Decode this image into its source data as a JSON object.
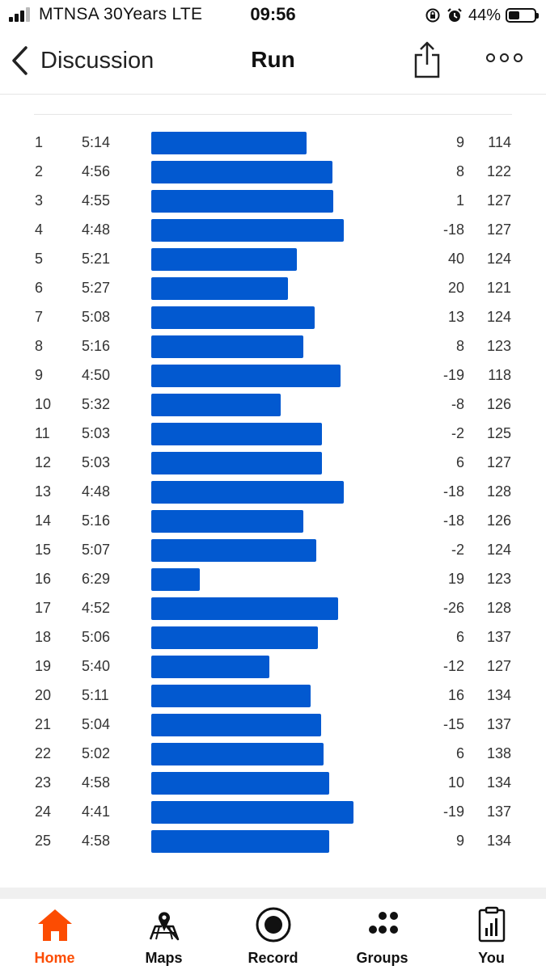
{
  "status": {
    "carrier": "MTNSA 30Years  LTE",
    "time": "09:56",
    "battery": "44%",
    "battery_level": 0.44
  },
  "nav": {
    "back_label": "Discussion",
    "title": "Run",
    "back_icon": "chevron-left-icon",
    "share_icon": "share-icon",
    "more_icon": "more-icon"
  },
  "colors": {
    "bar": "#0259d0",
    "accent": "#fc4c02"
  },
  "splits": [
    {
      "num": "1",
      "pace": "5:14",
      "elev": "9",
      "hr": "114"
    },
    {
      "num": "2",
      "pace": "4:56",
      "elev": "8",
      "hr": "122"
    },
    {
      "num": "3",
      "pace": "4:55",
      "elev": "1",
      "hr": "127"
    },
    {
      "num": "4",
      "pace": "4:48",
      "elev": "-18",
      "hr": "127"
    },
    {
      "num": "5",
      "pace": "5:21",
      "elev": "40",
      "hr": "124"
    },
    {
      "num": "6",
      "pace": "5:27",
      "elev": "20",
      "hr": "121"
    },
    {
      "num": "7",
      "pace": "5:08",
      "elev": "13",
      "hr": "124"
    },
    {
      "num": "8",
      "pace": "5:16",
      "elev": "8",
      "hr": "123"
    },
    {
      "num": "9",
      "pace": "4:50",
      "elev": "-19",
      "hr": "118"
    },
    {
      "num": "10",
      "pace": "5:32",
      "elev": "-8",
      "hr": "126"
    },
    {
      "num": "11",
      "pace": "5:03",
      "elev": "-2",
      "hr": "125"
    },
    {
      "num": "12",
      "pace": "5:03",
      "elev": "6",
      "hr": "127"
    },
    {
      "num": "13",
      "pace": "4:48",
      "elev": "-18",
      "hr": "128"
    },
    {
      "num": "14",
      "pace": "5:16",
      "elev": "-18",
      "hr": "126"
    },
    {
      "num": "15",
      "pace": "5:07",
      "elev": "-2",
      "hr": "124"
    },
    {
      "num": "16",
      "pace": "6:29",
      "elev": "19",
      "hr": "123"
    },
    {
      "num": "17",
      "pace": "4:52",
      "elev": "-26",
      "hr": "128"
    },
    {
      "num": "18",
      "pace": "5:06",
      "elev": "6",
      "hr": "137"
    },
    {
      "num": "19",
      "pace": "5:40",
      "elev": "-12",
      "hr": "127"
    },
    {
      "num": "20",
      "pace": "5:11",
      "elev": "16",
      "hr": "134"
    },
    {
      "num": "21",
      "pace": "5:04",
      "elev": "-15",
      "hr": "137"
    },
    {
      "num": "22",
      "pace": "5:02",
      "elev": "6",
      "hr": "138"
    },
    {
      "num": "23",
      "pace": "4:58",
      "elev": "10",
      "hr": "134"
    },
    {
      "num": "24",
      "pace": "4:41",
      "elev": "-19",
      "hr": "137"
    },
    {
      "num": "25",
      "pace": "4:58",
      "elev": "9",
      "hr": "134"
    }
  ],
  "tabs": [
    {
      "label": "Home",
      "icon": "home-icon",
      "active": true
    },
    {
      "label": "Maps",
      "icon": "maps-icon",
      "active": false
    },
    {
      "label": "Record",
      "icon": "record-icon",
      "active": false
    },
    {
      "label": "Groups",
      "icon": "groups-icon",
      "active": false
    },
    {
      "label": "You",
      "icon": "you-icon",
      "active": false
    }
  ]
}
